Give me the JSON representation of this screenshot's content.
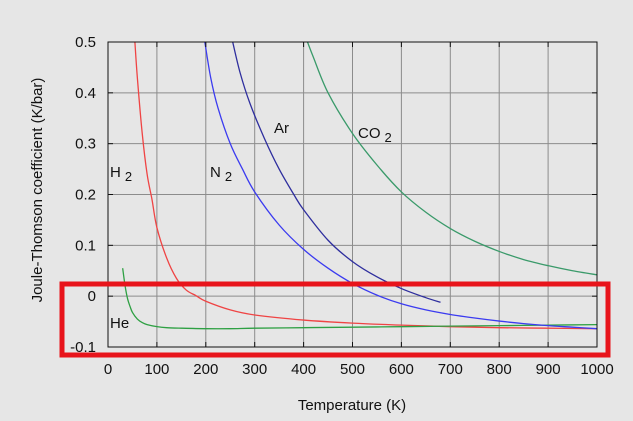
{
  "chart_data": {
    "type": "line",
    "title": "",
    "xlabel": "Temperature (K)",
    "ylabel": "Joule-Thomson coefficient (K/bar)",
    "xlim": [
      0,
      1000
    ],
    "ylim": [
      -0.1,
      0.5
    ],
    "xticks": [
      0,
      100,
      200,
      300,
      400,
      500,
      600,
      700,
      800,
      900,
      1000
    ],
    "yticks": [
      -0.1,
      0,
      0.1,
      0.2,
      0.3,
      0.4,
      0.5
    ],
    "xtick_labels": [
      "0",
      "100",
      "200",
      "300",
      "400",
      "500",
      "600",
      "700",
      "800",
      "900",
      "1000"
    ],
    "ytick_labels": [
      "-0.1",
      "0",
      "0.1",
      "0.2",
      "0.3",
      "0.4",
      "0.5"
    ],
    "grid": true,
    "series": [
      {
        "name": "H2",
        "label_main": "H",
        "label_sub": "2",
        "color": "#ef4444",
        "x": [
          55,
          60,
          70,
          80,
          90,
          100,
          120,
          140,
          160,
          180,
          200,
          250,
          300,
          400,
          500,
          600,
          700,
          800,
          900,
          1000
        ],
        "y": [
          0.5,
          0.43,
          0.32,
          0.24,
          0.19,
          0.135,
          0.075,
          0.035,
          0.012,
          0.001,
          -0.01,
          -0.027,
          -0.037,
          -0.047,
          -0.053,
          -0.057,
          -0.06,
          -0.062,
          -0.063,
          -0.064
        ]
      },
      {
        "name": "He",
        "label_main": "He",
        "label_sub": "",
        "color": "#2ea043",
        "x": [
          30,
          35,
          40,
          45,
          50,
          60,
          70,
          80,
          100,
          120,
          150,
          200,
          250,
          300,
          400,
          500,
          600,
          700,
          800,
          900,
          1000
        ],
        "y": [
          0.055,
          0.02,
          -0.005,
          -0.02,
          -0.032,
          -0.045,
          -0.052,
          -0.056,
          -0.06,
          -0.062,
          -0.063,
          -0.064,
          -0.064,
          -0.063,
          -0.062,
          -0.061,
          -0.06,
          -0.059,
          -0.058,
          -0.057,
          -0.056
        ]
      },
      {
        "name": "N2",
        "label_main": "N",
        "label_sub": "2",
        "color": "#3b3bf0",
        "x": [
          198,
          210,
          225,
          250,
          275,
          300,
          350,
          400,
          450,
          500,
          550,
          600,
          650,
          700,
          750,
          800,
          850,
          900,
          950,
          1000
        ],
        "y": [
          0.5,
          0.43,
          0.37,
          0.3,
          0.25,
          0.205,
          0.14,
          0.092,
          0.055,
          0.025,
          0.002,
          -0.015,
          -0.027,
          -0.036,
          -0.043,
          -0.049,
          -0.054,
          -0.058,
          -0.061,
          -0.064
        ]
      },
      {
        "name": "Ar",
        "label_main": "Ar",
        "label_sub": "",
        "color": "#2e2e9e",
        "x": [
          255,
          270,
          290,
          320,
          350,
          380,
          400,
          450,
          500,
          550,
          600,
          650,
          680
        ],
        "y": [
          0.5,
          0.44,
          0.38,
          0.31,
          0.25,
          0.2,
          0.17,
          0.11,
          0.068,
          0.038,
          0.015,
          -0.003,
          -0.012
        ]
      },
      {
        "name": "CO2",
        "label_main": "CO",
        "label_sub": "2",
        "color": "#3a9a6a",
        "x": [
          408,
          420,
          450,
          500,
          550,
          600,
          650,
          700,
          750,
          800,
          850,
          900,
          950,
          1000
        ],
        "y": [
          0.5,
          0.47,
          0.4,
          0.32,
          0.258,
          0.205,
          0.165,
          0.133,
          0.108,
          0.088,
          0.072,
          0.06,
          0.05,
          0.042
        ]
      }
    ]
  }
}
